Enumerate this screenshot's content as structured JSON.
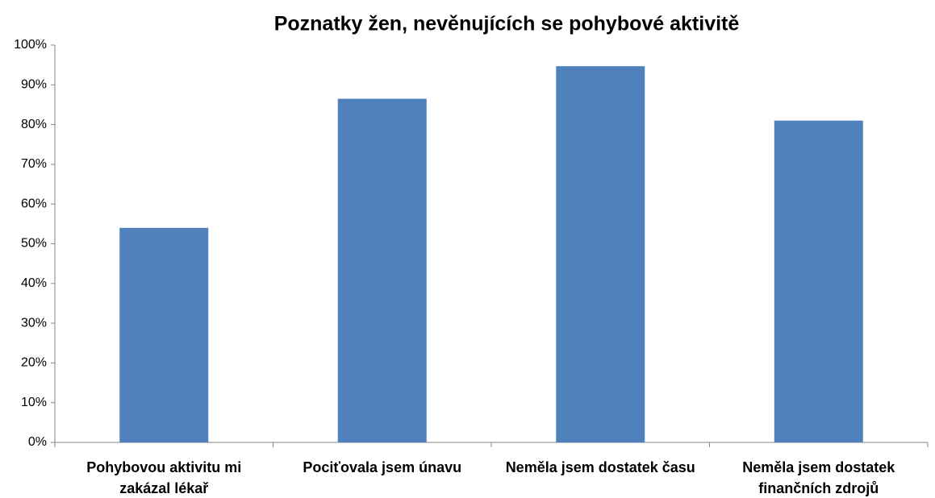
{
  "chart_data": {
    "type": "bar",
    "title": "Poznatky žen, nevěnujících se pohybové aktivitě",
    "categories": [
      "Pohybovou aktivitu mi zakázal lékař",
      "Pociťovala jsem únavu",
      "Neměla jsem dostatek času",
      "Neměla jsem dostatek finančních zdrojů"
    ],
    "values": [
      54,
      86.5,
      94.7,
      81
    ],
    "color": "#4f81bd",
    "ylim": [
      0,
      100
    ],
    "yticks": [
      {
        "value": 0,
        "label": "0%"
      },
      {
        "value": 10,
        "label": "10%"
      },
      {
        "value": 20,
        "label": "20%"
      },
      {
        "value": 30,
        "label": "30%"
      },
      {
        "value": 40,
        "label": "40%"
      },
      {
        "value": 50,
        "label": "50%"
      },
      {
        "value": 60,
        "label": "60%"
      },
      {
        "value": 70,
        "label": "70%"
      },
      {
        "value": 80,
        "label": "80%"
      },
      {
        "value": 90,
        "label": "90%"
      },
      {
        "value": 100,
        "label": "100%"
      }
    ],
    "grid": false
  }
}
